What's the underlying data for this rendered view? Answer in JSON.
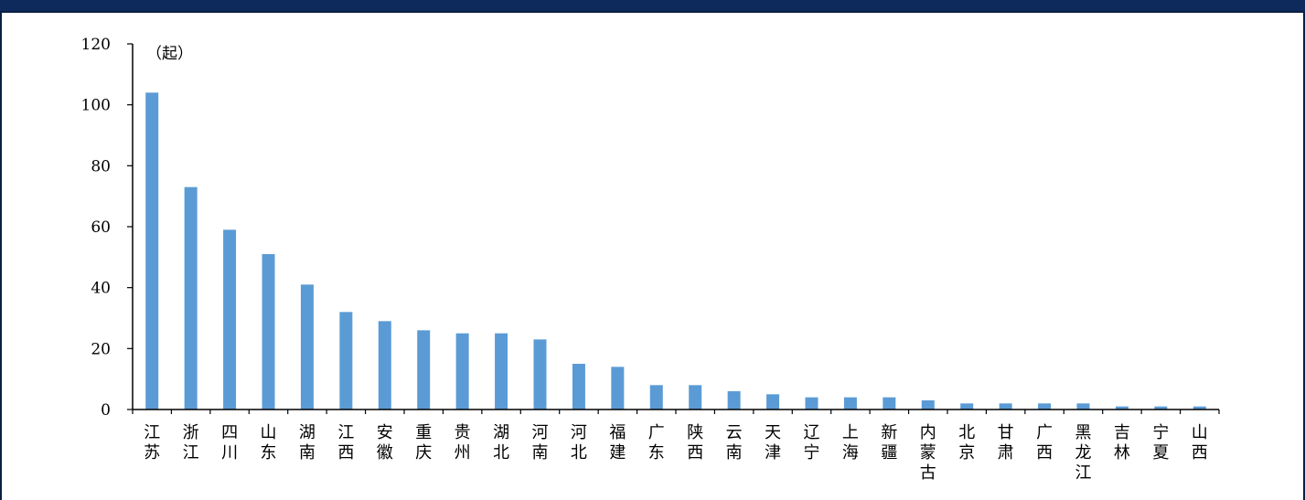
{
  "chart_data": {
    "type": "bar",
    "unit_label": "（起）",
    "categories": [
      "江苏",
      "浙江",
      "四川",
      "山东",
      "湖南",
      "江西",
      "安徽",
      "重庆",
      "贵州",
      "湖北",
      "河南",
      "河北",
      "福建",
      "广东",
      "陕西",
      "云南",
      "天津",
      "辽宁",
      "上海",
      "新疆",
      "内蒙古",
      "北京",
      "甘肃",
      "广西",
      "黑龙江",
      "吉林",
      "宁夏",
      "山西"
    ],
    "values": [
      104,
      73,
      59,
      51,
      41,
      32,
      29,
      26,
      25,
      25,
      23,
      15,
      14,
      8,
      8,
      6,
      5,
      4,
      4,
      4,
      3,
      2,
      2,
      2,
      2,
      1,
      1,
      1
    ],
    "yticks": [
      "0",
      "20",
      "40",
      "60",
      "80",
      "100",
      "120"
    ],
    "ylim": [
      0,
      120
    ],
    "bar_color": "#5b9bd5",
    "grid": false
  }
}
